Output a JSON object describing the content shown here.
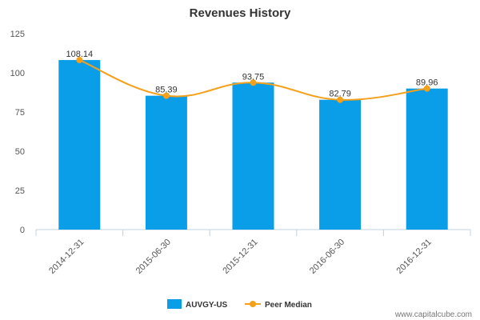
{
  "chart_data": {
    "type": "bar",
    "title": "Revenues History",
    "categories": [
      "2014-12-31",
      "2015-06-30",
      "2015-12-31",
      "2016-06-30",
      "2016-12-31"
    ],
    "series": [
      {
        "name": "AUVGY-US",
        "type": "bar",
        "color": "#0a9ee8",
        "values": [
          108.14,
          85.39,
          93.75,
          82.79,
          89.96
        ],
        "value_labels": [
          "108.14",
          "85.39",
          "93.75",
          "82.79",
          "89.96"
        ]
      },
      {
        "name": "Peer Median",
        "type": "line",
        "color": "#f5a01a",
        "smooth": true,
        "values": [
          108.14,
          85.39,
          93.75,
          82.79,
          89.96
        ]
      }
    ],
    "ylim": [
      0,
      125
    ],
    "yticks": [
      0,
      25,
      50,
      75,
      100,
      125
    ],
    "ytick_labels": [
      "0",
      "25",
      "50",
      "75",
      "100",
      "125"
    ],
    "xlabel": "",
    "ylabel": "",
    "grid": false,
    "legend_position": "bottom-center"
  },
  "watermark": "www.capitalcube.com"
}
